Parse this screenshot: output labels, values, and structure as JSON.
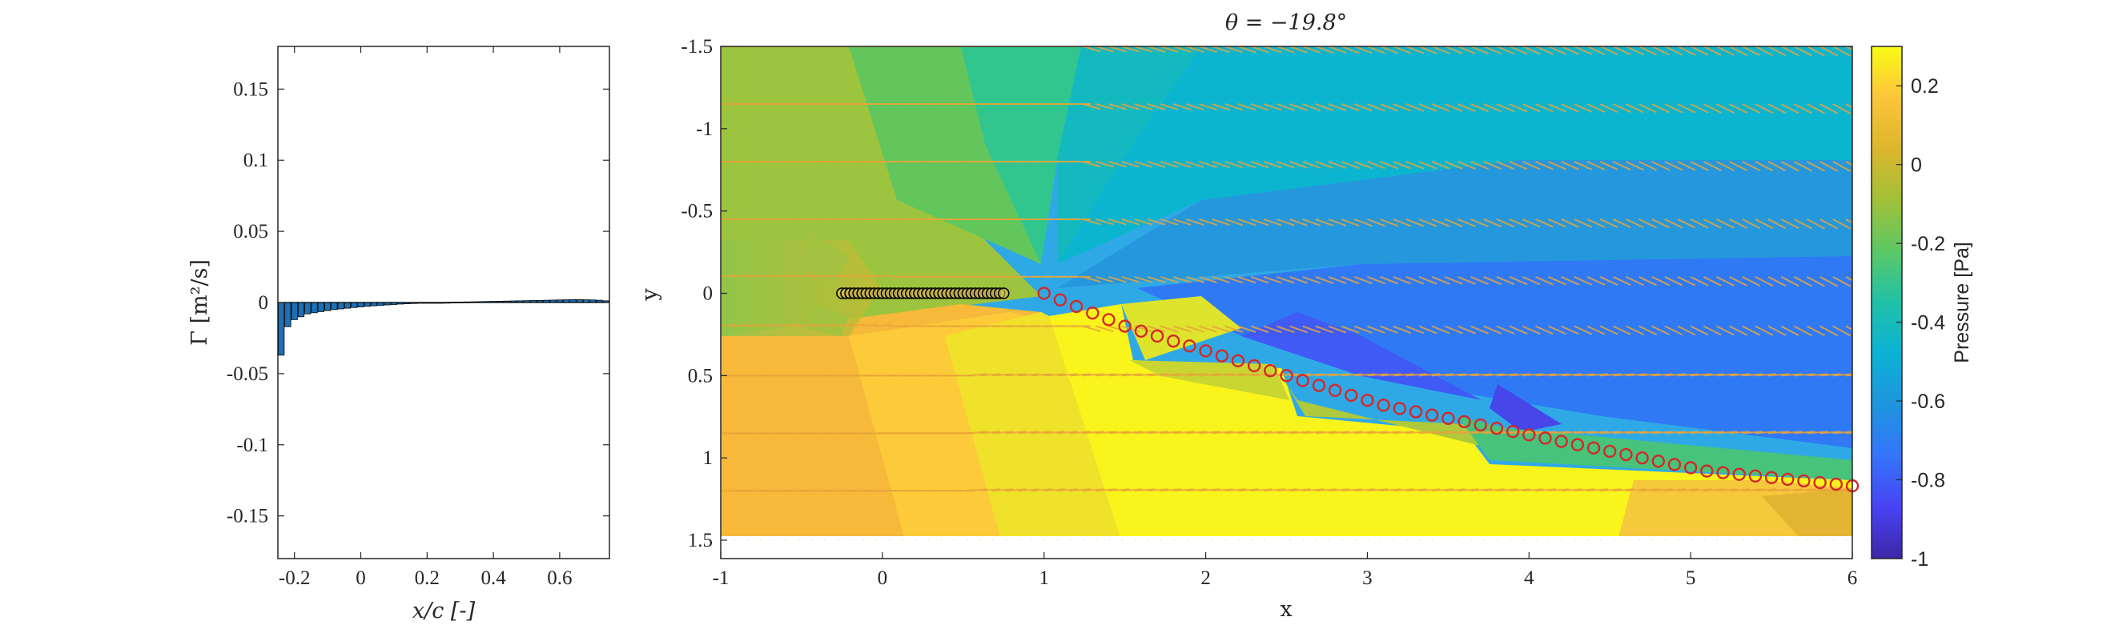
{
  "chart_data": [
    {
      "type": "bar",
      "xlabel": "x/c [-]",
      "ylabel": "Γ [m²/s]",
      "xlim": [
        -0.25,
        0.75
      ],
      "ylim": [
        -0.18,
        0.18
      ],
      "xticks": [
        "-0.2",
        "0",
        "0.2",
        "0.4",
        "0.6"
      ],
      "yticks": [
        "-0.15",
        "-0.1",
        "-0.05",
        "0",
        "0.05",
        "0.1",
        "0.15"
      ],
      "bar_color": "#1f6fb5",
      "series": [
        {
          "x": [
            -0.24,
            -0.22,
            -0.2,
            -0.18,
            -0.16,
            -0.14,
            -0.12,
            -0.1,
            -0.08,
            -0.06,
            -0.04,
            -0.02,
            0.0,
            0.02,
            0.04,
            0.06,
            0.08,
            0.1,
            0.12,
            0.14,
            0.16,
            0.18,
            0.2,
            0.22,
            0.24,
            0.26,
            0.28,
            0.3,
            0.32,
            0.34,
            0.36,
            0.38,
            0.4,
            0.42,
            0.44,
            0.46,
            0.48,
            0.5,
            0.52,
            0.54,
            0.56,
            0.58,
            0.6,
            0.62,
            0.64,
            0.66,
            0.68,
            0.7,
            0.72,
            0.74
          ],
          "values": [
            -0.037,
            -0.017,
            -0.012,
            -0.01,
            -0.008,
            -0.0072,
            -0.0064,
            -0.0057,
            -0.005,
            -0.0045,
            -0.004,
            -0.0035,
            -0.0031,
            -0.0027,
            -0.0023,
            -0.002,
            -0.0017,
            -0.0014,
            -0.0011,
            -0.0009,
            -0.0007,
            -0.0005,
            -0.0003,
            -0.0002,
            -0.0001,
            0.0001,
            0.0002,
            0.0003,
            0.0004,
            0.0005,
            0.0006,
            0.0007,
            0.0008,
            0.0009,
            0.001,
            0.0011,
            0.0012,
            0.0013,
            0.0014,
            0.0015,
            0.0016,
            0.0017,
            0.0018,
            0.0019,
            0.002,
            0.002,
            0.0019,
            0.0018,
            0.0016,
            0.0012
          ]
        }
      ]
    },
    {
      "type": "heatmap",
      "title": "θ = −19.8°",
      "xlabel": "x",
      "ylabel": "y",
      "xlim": [
        -1,
        6
      ],
      "ylim": [
        -1.5,
        1.5
      ],
      "y_reversed": true,
      "xticks": [
        "-1",
        "0",
        "1",
        "2",
        "3",
        "4",
        "5",
        "6"
      ],
      "yticks": [
        "-1.5",
        "-1",
        "-0.5",
        "0",
        "0.5",
        "1",
        "1.5"
      ],
      "colorbar": {
        "label": "Pressure [Pa]",
        "range": [
          -1,
          0.3
        ],
        "ticks": [
          "0.2",
          "0",
          "-0.2",
          "-0.4",
          "-0.6",
          "-0.8",
          "-1"
        ],
        "colormap": "parula"
      },
      "plate_points": {
        "x": [
          -0.25,
          -0.225,
          -0.2,
          -0.175,
          -0.15,
          -0.125,
          -0.1,
          -0.075,
          -0.05,
          -0.025,
          0.0,
          0.025,
          0.05,
          0.075,
          0.1,
          0.125,
          0.15,
          0.175,
          0.2,
          0.225,
          0.25,
          0.275,
          0.3,
          0.325,
          0.35,
          0.375,
          0.4,
          0.425,
          0.45,
          0.475,
          0.5,
          0.525,
          0.55,
          0.575,
          0.6,
          0.625,
          0.65,
          0.675,
          0.7,
          0.725,
          0.75
        ],
        "y": 0,
        "color": "#000000"
      },
      "wake_points": {
        "x": [
          1.0,
          1.1,
          1.2,
          1.3,
          1.4,
          1.5,
          1.6,
          1.7,
          1.8,
          1.9,
          2.0,
          2.1,
          2.2,
          2.3,
          2.4,
          2.5,
          2.6,
          2.7,
          2.8,
          2.9,
          3.0,
          3.1,
          3.2,
          3.3,
          3.4,
          3.5,
          3.6,
          3.7,
          3.8,
          3.9,
          4.0,
          4.1,
          4.2,
          4.3,
          4.4,
          4.5,
          4.6,
          4.7,
          4.8,
          4.9,
          5.0,
          5.1,
          5.2,
          5.3,
          5.4,
          5.5,
          5.6,
          5.7,
          5.8,
          5.9,
          6.0
        ],
        "y": [
          0.0,
          0.04,
          0.08,
          0.12,
          0.16,
          0.2,
          0.23,
          0.26,
          0.29,
          0.32,
          0.35,
          0.38,
          0.41,
          0.44,
          0.47,
          0.5,
          0.53,
          0.56,
          0.59,
          0.62,
          0.65,
          0.68,
          0.7,
          0.72,
          0.74,
          0.76,
          0.78,
          0.8,
          0.82,
          0.84,
          0.86,
          0.88,
          0.9,
          0.92,
          0.94,
          0.96,
          0.98,
          1.0,
          1.02,
          1.04,
          1.06,
          1.08,
          1.09,
          1.1,
          1.11,
          1.12,
          1.13,
          1.14,
          1.15,
          1.16,
          1.17
        ],
        "color": "#d62728"
      },
      "quiver": {
        "rows_y": [
          -1.5,
          -1.15,
          -0.8,
          -0.45,
          -0.1,
          0.2,
          0.5,
          0.85,
          1.2,
          1.5
        ],
        "color": "#e8a33a"
      }
    }
  ]
}
